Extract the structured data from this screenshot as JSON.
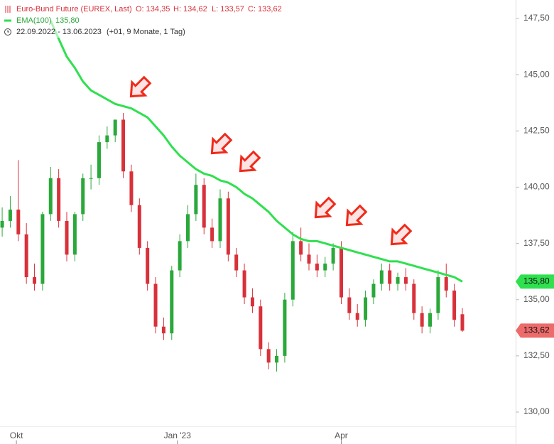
{
  "chart_data": {
    "type": "candlestick",
    "title": "Euro-Bund Future (EUREX, Last)",
    "ohlc_legend": [
      "O: 134,35",
      "H: 134,62",
      "L: 133,57",
      "C: 133,62"
    ],
    "indicator_legend": [
      "EMA(100)",
      "135,80"
    ],
    "period_legend": [
      "22.09.2022 - 13.06.2023",
      "(+01, 9 Monate, 1 Tag)"
    ],
    "open": [
      138.2,
      138.5,
      139,
      137.9,
      136,
      135.7,
      138.8,
      140.4,
      138.5,
      137,
      138.8,
      140.4,
      140.4,
      142,
      142.3,
      143,
      140.7,
      139.2,
      137.3,
      135.7,
      133.8,
      133.5,
      136.3,
      137.6,
      138.8,
      140.1,
      138.2,
      137.6,
      139.5,
      137,
      136.3,
      135.1,
      134.7,
      132.8,
      132.2,
      132.5,
      135,
      137.6,
      137,
      136.6,
      136.3,
      136.6,
      137.3,
      135.1,
      134.4,
      134.1,
      135.1,
      135.7,
      136.3,
      135.7,
      136,
      135.7,
      134.4,
      133.8,
      134.4,
      136,
      135.4,
      134.35
    ],
    "high": [
      139.1,
      139.6,
      141.2,
      138.4,
      136.6,
      138.9,
      140.9,
      140.8,
      138.9,
      138.9,
      140.6,
      141,
      142.3,
      142.7,
      143,
      143.3,
      141,
      139.5,
      137.6,
      136,
      134.2,
      136.5,
      137.9,
      139.2,
      140.6,
      140.4,
      138.6,
      139.9,
      139.8,
      137.3,
      136.6,
      135.5,
      135,
      133.1,
      132.8,
      135.3,
      138,
      138.2,
      137.5,
      137,
      136.9,
      137.5,
      137.6,
      135.5,
      134.8,
      135.4,
      135.9,
      136.6,
      136.6,
      136.2,
      136.4,
      135.9,
      134.7,
      134.6,
      136.3,
      136.6,
      135.7,
      134.62
    ],
    "low": [
      137.8,
      138.2,
      137.6,
      135.7,
      135.4,
      135.4,
      138.5,
      138.2,
      136.7,
      136.7,
      138.5,
      139.9,
      140.1,
      141.7,
      142,
      140.4,
      138.9,
      137,
      135.4,
      133.5,
      133.2,
      133.2,
      136,
      137.3,
      138.5,
      137.9,
      137.3,
      137.3,
      136.7,
      136,
      134.8,
      134.4,
      132.5,
      131.9,
      131.8,
      132.2,
      134.7,
      136.7,
      136.3,
      136,
      136,
      136.3,
      134.8,
      134.1,
      133.8,
      133.8,
      134.8,
      135.4,
      135.4,
      135.4,
      135.4,
      134.1,
      133.5,
      133.5,
      134.1,
      135.1,
      133.8,
      133.57
    ],
    "close": [
      138.5,
      139,
      137.9,
      136,
      135.7,
      138.8,
      140.4,
      138.5,
      137,
      138.8,
      140.4,
      140.4,
      142,
      142.3,
      143,
      140.7,
      139.2,
      137.3,
      135.7,
      133.8,
      133.5,
      136.3,
      137.6,
      138.8,
      140.1,
      138.2,
      137.6,
      139.5,
      137,
      136.3,
      135.1,
      134.7,
      132.8,
      132.2,
      132.5,
      135,
      137.6,
      137,
      136.6,
      136.3,
      136.6,
      137.3,
      135.1,
      134.4,
      134.1,
      135.1,
      135.7,
      136.3,
      135.7,
      136,
      135.7,
      134.4,
      133.8,
      134.4,
      136,
      135.4,
      134.1,
      133.62
    ],
    "ema": [
      null,
      null,
      null,
      null,
      null,
      null,
      147.4,
      146.6,
      145.8,
      145.3,
      144.7,
      144.3,
      144.1,
      143.9,
      143.7,
      143.6,
      143.5,
      143.3,
      143.1,
      142.7,
      142.3,
      141.8,
      141.4,
      141.1,
      140.8,
      140.6,
      140.5,
      140.3,
      140.2,
      140,
      139.7,
      139.5,
      139.2,
      138.9,
      138.5,
      138.2,
      137.9,
      137.7,
      137.6,
      137.6,
      137.5,
      137.4,
      137.3,
      137.2,
      137.1,
      137,
      136.9,
      136.8,
      136.7,
      136.7,
      136.6,
      136.5,
      136.4,
      136.3,
      136.2,
      136.1,
      136,
      135.8
    ],
    "ema_color": "#2fe04f",
    "up_color": "#2aa83a",
    "down_color": "#d8313a",
    "last_labels": {
      "close": "133,62",
      "ema": "135,80"
    },
    "xlim": [
      -0.27,
      63.6
    ],
    "xticks": [
      {
        "value": 1.76,
        "label": "Okt"
      },
      {
        "value": 21.7,
        "label": "Jan '23"
      },
      {
        "value": 42,
        "label": "Apr"
      }
    ],
    "ylim": [
      129.37,
      148.32
    ],
    "yticks": [
      {
        "value": 130,
        "label": "130,00"
      },
      {
        "value": 132.5,
        "label": "132,50"
      },
      {
        "value": 135,
        "label": "135,00"
      },
      {
        "value": 137.5,
        "label": "137,50"
      },
      {
        "value": 140,
        "label": "140,00"
      },
      {
        "value": 142.5,
        "label": "142,50"
      },
      {
        "value": 145,
        "label": "145,00"
      },
      {
        "value": 147.5,
        "label": "147,50"
      }
    ],
    "grid": false
  }
}
